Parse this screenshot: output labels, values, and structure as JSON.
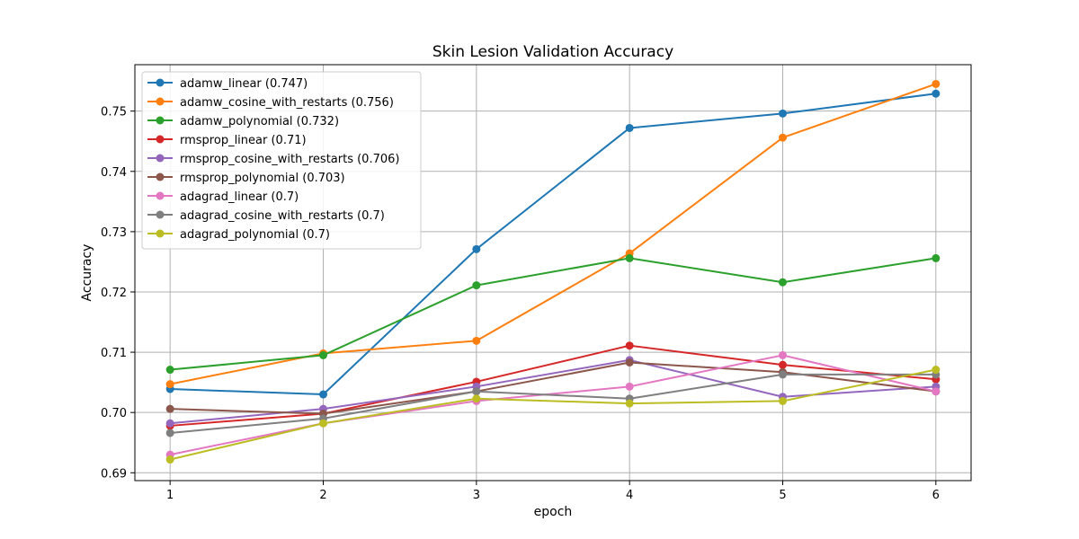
{
  "chart_data": {
    "type": "line",
    "title": "Skin Lesion Validation Accuracy",
    "xlabel": "epoch",
    "ylabel": "Accuracy",
    "x": [
      1,
      2,
      3,
      4,
      5,
      6
    ],
    "xticks": [
      "1",
      "2",
      "3",
      "4",
      "5",
      "6"
    ],
    "xlim": [
      0.77,
      6.23
    ],
    "yticks": [
      "0.69",
      "0.70",
      "0.71",
      "0.72",
      "0.73",
      "0.74",
      "0.75"
    ],
    "ytick_values": [
      0.69,
      0.7,
      0.71,
      0.72,
      0.73,
      0.74,
      0.75
    ],
    "ylim": [
      0.6887,
      0.7577
    ],
    "grid": true,
    "legend_position": "top-left",
    "series": [
      {
        "name": "adamw_linear (0.747)",
        "color": "#1f77b4",
        "values": [
          0.7039,
          0.703,
          0.7271,
          0.7472,
          0.7496,
          0.7529
        ]
      },
      {
        "name": "adamw_cosine_with_restarts (0.756)",
        "color": "#ff7f0e",
        "values": [
          0.7047,
          0.7098,
          0.7119,
          0.7264,
          0.7456,
          0.7545
        ]
      },
      {
        "name": "adamw_polynomial (0.732)",
        "color": "#2ca02c",
        "values": [
          0.7071,
          0.7095,
          0.7211,
          0.7256,
          0.7216,
          0.7256
        ]
      },
      {
        "name": "rmsprop_linear (0.71)",
        "color": "#d62728",
        "values": [
          0.6978,
          0.6998,
          0.7051,
          0.7111,
          0.7079,
          0.7055
        ]
      },
      {
        "name": "rmsprop_cosine_with_restarts (0.706)",
        "color": "#9467bd",
        "values": [
          0.6982,
          0.7006,
          0.7043,
          0.7087,
          0.7026,
          0.7043
        ]
      },
      {
        "name": "rmsprop_polynomial (0.703)",
        "color": "#8c564b",
        "values": [
          0.7006,
          0.6998,
          0.7035,
          0.7083,
          0.7067,
          0.7035
        ]
      },
      {
        "name": "adagrad_linear (0.7)",
        "color": "#e377c2",
        "values": [
          0.693,
          0.6982,
          0.7019,
          0.7043,
          0.7095,
          0.7035
        ]
      },
      {
        "name": "adagrad_cosine_with_restarts (0.7)",
        "color": "#7f7f7f",
        "values": [
          0.6966,
          0.699,
          0.7035,
          0.7023,
          0.7063,
          0.7063
        ]
      },
      {
        "name": "adagrad_polynomial (0.7)",
        "color": "#bcbd22",
        "values": [
          0.6922,
          0.6982,
          0.7023,
          0.7015,
          0.7019,
          0.7071
        ]
      }
    ]
  }
}
